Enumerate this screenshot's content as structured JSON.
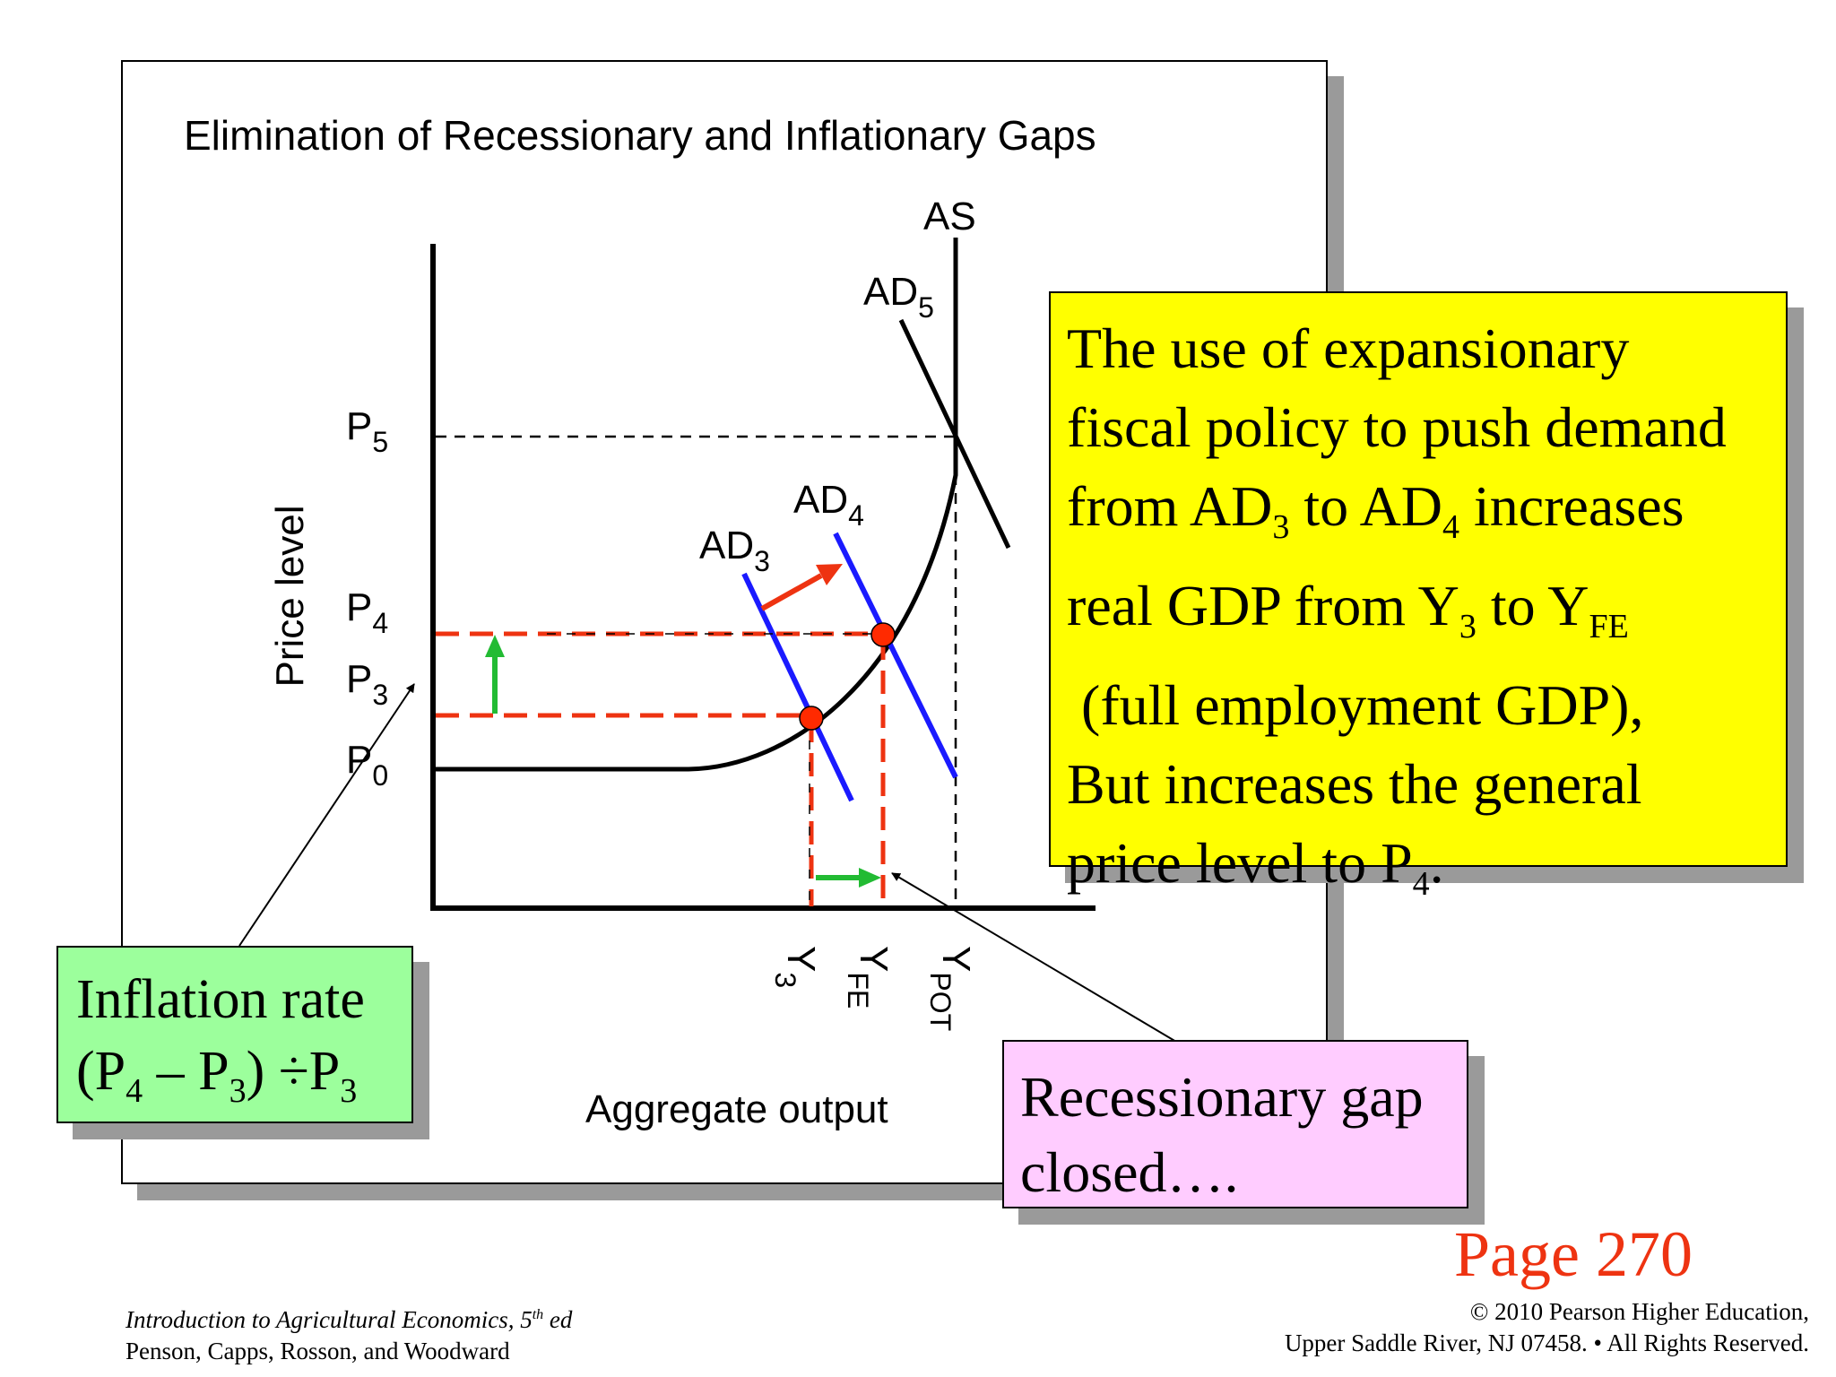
{
  "figure": {
    "title": "Elimination of Recessionary and Inflationary Gaps",
    "y_axis_label": "Price level",
    "x_axis_label": "Aggregate output",
    "curve_labels": {
      "as": "AS",
      "ad5": {
        "base": "AD",
        "sub": "5"
      },
      "ad4": {
        "base": "AD",
        "sub": "4"
      },
      "ad3": {
        "base": "AD",
        "sub": "3"
      }
    },
    "price_labels": [
      {
        "base": "P",
        "sub": "5"
      },
      {
        "base": "P",
        "sub": "4"
      },
      {
        "base": "P",
        "sub": "3"
      },
      {
        "base": "P",
        "sub": "0"
      }
    ],
    "output_labels": [
      {
        "base": "Y",
        "sub": "3"
      },
      {
        "base": "Y",
        "sub": "FE"
      },
      {
        "base": "Y",
        "sub": "POT"
      }
    ]
  },
  "explanation_box": {
    "line1": "The use of expansionary",
    "line2": "fiscal policy to push demand",
    "line3_a": "from AD",
    "line3_sub1": "3",
    "line3_b": " to AD",
    "line3_sub2": "4",
    "line3_c": " increases",
    "line4_a": "real GDP from Y",
    "line4_sub1": "3",
    "line4_b": " to Y",
    "line4_sub2": "FE",
    "line5": " (full employment GDP),",
    "line6": "But increases the general",
    "line7_a": "price level to P",
    "line7_sub": "4",
    "line7_b": "."
  },
  "inflation_box": {
    "line1": "Inflation rate",
    "formula_a": "(P",
    "formula_sub1": "4",
    "formula_b": " – P",
    "formula_sub2": "3",
    "formula_c": ") ÷P",
    "formula_sub3": "3"
  },
  "recession_box": {
    "line1": "Recessionary gap",
    "line2": "closed…."
  },
  "page_reference": "Page 270",
  "footer_left": {
    "book_a": "Introduction to Agricultural Economics, 5",
    "book_sup": "th",
    "book_b": " ed",
    "authors": "Penson, Capps, Rosson, and Woodward"
  },
  "footer_right": {
    "line1": "© 2010 Pearson Higher Education,",
    "line2": "Upper Saddle River, NJ 07458. • All Rights Reserved."
  },
  "colors": {
    "ad_curve": "#1a1aff",
    "guide_dashed": "#ee3311",
    "equilibrium_dot": "#ff2a00",
    "shift_arrow": "#ee3311",
    "increase_arrow": "#22bb33",
    "explanation_bg": "#ffff00",
    "inflation_bg": "#9cff9c",
    "recession_bg": "#ffccff",
    "page_ref": "#ee3311"
  }
}
